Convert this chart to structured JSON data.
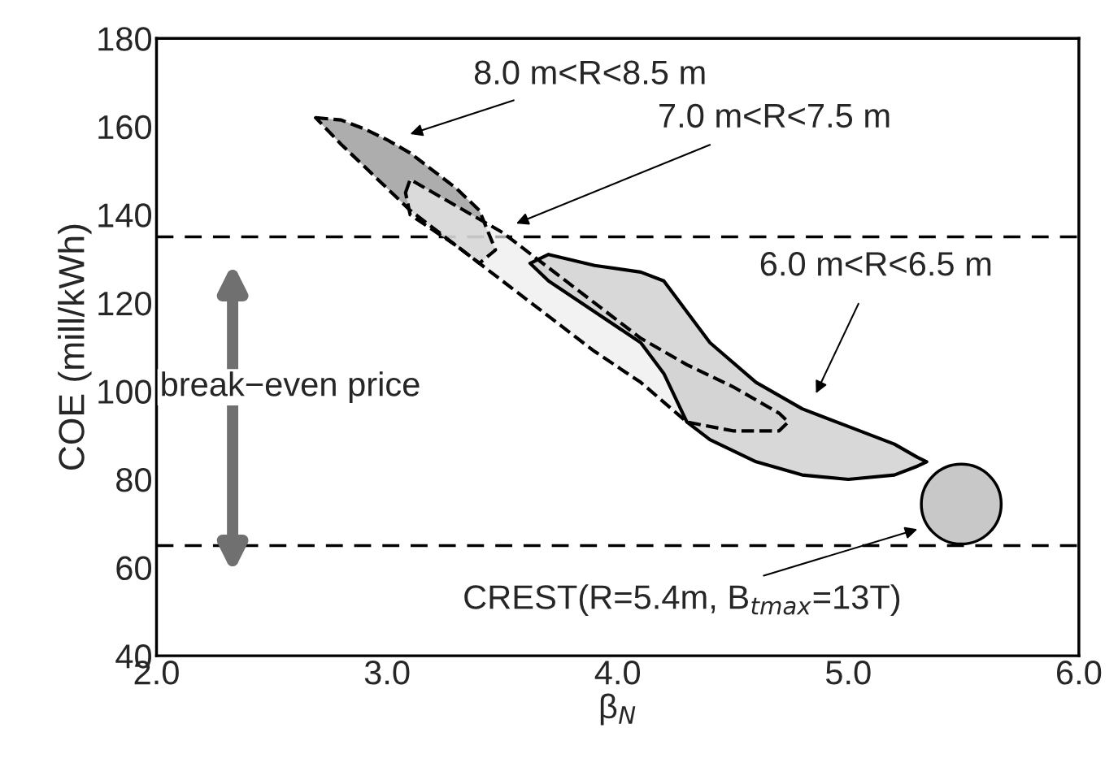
{
  "chart_data": {
    "type": "area",
    "xlabel": "β$_{N}$",
    "ylabel": "COE (mill/kWh)",
    "xlim": [
      2.0,
      6.0
    ],
    "ylim": [
      40,
      180
    ],
    "xticks": [
      {
        "value": 2,
        "label": "2.0"
      },
      {
        "value": 3,
        "label": "3.0"
      },
      {
        "value": 4,
        "label": "4.0"
      },
      {
        "value": 5,
        "label": "5.0"
      },
      {
        "value": 6,
        "label": "6.0"
      }
    ],
    "yticks": [
      40,
      60,
      80,
      100,
      120,
      140,
      160,
      180
    ],
    "grid": false,
    "legend": false,
    "series": [
      {
        "color": "#8a8a8a",
        "line_style": "dashed",
        "x": [
          2.69,
          2.8,
          2.9,
          3.0,
          3.1,
          3.2,
          3.3,
          3.4,
          3.47,
          3.4,
          3.3,
          3.2,
          3.1,
          3.0,
          2.9,
          2.8
        ],
        "values": [
          162,
          161.5,
          159.5,
          157,
          154,
          150,
          146,
          141,
          132,
          129,
          133,
          137,
          141,
          146,
          151,
          156
        ]
      },
      {
        "color": "#ececec",
        "line_style": "dashed",
        "x": [
          3.08,
          3.1,
          3.3,
          3.5,
          3.7,
          3.9,
          4.1,
          4.3,
          4.5,
          4.7,
          4.74,
          4.7,
          4.5,
          4.3,
          4.1,
          3.9,
          3.7,
          3.5,
          3.3,
          3.1
        ],
        "values": [
          145,
          148,
          142,
          136,
          128,
          120,
          112,
          106,
          101,
          95,
          93,
          91,
          91,
          93,
          102,
          109,
          117,
          125,
          133,
          140
        ]
      },
      {
        "color": "#c8c8c8",
        "line_style": "solid",
        "x": [
          3.62,
          3.7,
          3.9,
          4.1,
          4.2,
          4.3,
          4.4,
          4.6,
          4.8,
          5.0,
          5.2,
          5.3,
          5.34,
          5.3,
          5.2,
          5.0,
          4.8,
          4.6,
          4.4,
          4.3,
          4.2,
          4.1,
          3.9,
          3.7
        ],
        "values": [
          129,
          131,
          128.5,
          127,
          125,
          118,
          111,
          102,
          96,
          92,
          88,
          85,
          84,
          83,
          81,
          80,
          81,
          84,
          89,
          93,
          104,
          111,
          118,
          125
        ]
      },
      {
        "type": "scatter",
        "color": "#c8c8c8",
        "marker": "circle",
        "x": [
          5.49
        ],
        "values": [
          74.4
        ]
      }
    ],
    "ref_lines": [
      {
        "axis": "y",
        "value": 135,
        "line_style": "dashed",
        "color": "#000000"
      },
      {
        "axis": "y",
        "value": 65,
        "line_style": "dashed",
        "color": "#000000"
      }
    ],
    "annotations": [
      "8.0 m<R<8.5 m",
      "7.0 m<R<7.5 m",
      "6.0 m<R<6.5 m",
      "CREST(R=5.4m, B$_{tmax}$=13T)",
      "break−even price"
    ]
  }
}
